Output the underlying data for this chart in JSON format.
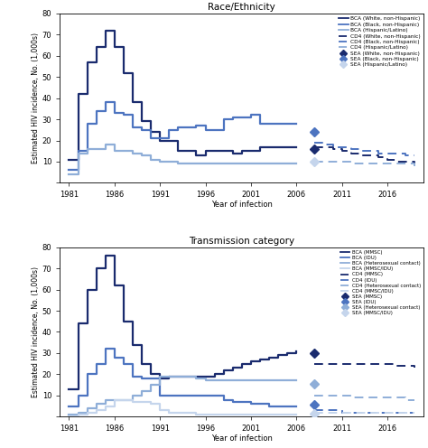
{
  "top_title": "Race/Ethnicity",
  "bottom_title": "Transmission category",
  "ylabel": "Estimated HIV incidence, No. (1,000s)",
  "xlabel": "Year of infection",
  "ylim": [
    0,
    80
  ],
  "yticks": [
    0,
    10,
    20,
    30,
    40,
    50,
    60,
    70,
    80
  ],
  "xticks": [
    1981,
    1986,
    1991,
    1996,
    2001,
    2006,
    2011,
    2016
  ],
  "top_bca_years": [
    1981,
    1982,
    1983,
    1984,
    1985,
    1986,
    1987,
    1988,
    1989,
    1990,
    1991,
    1992,
    1993,
    1994,
    1995,
    1996,
    1997,
    1998,
    1999,
    2000,
    2001,
    2002,
    2003,
    2004,
    2005,
    2006
  ],
  "top_bca_white": [
    11,
    42,
    57,
    64,
    72,
    64,
    52,
    38,
    29,
    24,
    20,
    20,
    15,
    15,
    13,
    15,
    15,
    15,
    14,
    15,
    15,
    17,
    17,
    17,
    17,
    17
  ],
  "top_bca_black": [
    6,
    15,
    28,
    34,
    38,
    33,
    32,
    26,
    25,
    21,
    21,
    25,
    26,
    26,
    27,
    25,
    25,
    30,
    31,
    31,
    32,
    28,
    28,
    28,
    28,
    28
  ],
  "top_bca_hisp": [
    4,
    14,
    16,
    16,
    18,
    15,
    15,
    14,
    13,
    11,
    10,
    10,
    9,
    9,
    9,
    9,
    9,
    9,
    9,
    9,
    9,
    9,
    9,
    9,
    9,
    9
  ],
  "top_cd4_years": [
    2008,
    2009,
    2010,
    2011,
    2012,
    2013,
    2014,
    2015,
    2016,
    2017,
    2018,
    2019
  ],
  "top_cd4_white": [
    17,
    17,
    16,
    15,
    14,
    13,
    13,
    12,
    11,
    10,
    10,
    9
  ],
  "top_cd4_black": [
    19,
    18,
    17,
    17,
    16,
    15,
    15,
    14,
    14,
    14,
    13,
    13
  ],
  "top_cd4_hisp": [
    10,
    10,
    10,
    10,
    9,
    9,
    9,
    9,
    9,
    9,
    9,
    8
  ],
  "top_sea_year": [
    2008
  ],
  "top_sea_white": [
    16
  ],
  "top_sea_black": [
    24
  ],
  "top_sea_hisp": [
    10
  ],
  "bot_bca_years": [
    1981,
    1982,
    1983,
    1984,
    1985,
    1986,
    1987,
    1988,
    1989,
    1990,
    1991,
    1992,
    1993,
    1994,
    1995,
    1996,
    1997,
    1998,
    1999,
    2000,
    2001,
    2002,
    2003,
    2004,
    2005,
    2006
  ],
  "bot_bca_mmsc": [
    13,
    44,
    60,
    70,
    76,
    62,
    45,
    34,
    25,
    20,
    18,
    19,
    19,
    19,
    19,
    19,
    20,
    22,
    23,
    25,
    26,
    27,
    28,
    29,
    30,
    31
  ],
  "bot_bca_idu": [
    5,
    10,
    20,
    25,
    32,
    28,
    25,
    19,
    18,
    18,
    10,
    10,
    10,
    10,
    10,
    10,
    10,
    8,
    7,
    7,
    6,
    6,
    5,
    5,
    5,
    5
  ],
  "bot_bca_het": [
    1,
    2,
    4,
    6,
    8,
    8,
    8,
    10,
    12,
    15,
    19,
    19,
    19,
    19,
    18,
    17,
    17,
    17,
    17,
    17,
    17,
    17,
    17,
    17,
    17,
    17
  ],
  "bot_bca_mmscidu": [
    0,
    1,
    2,
    3,
    5,
    8,
    8,
    7,
    7,
    6,
    3,
    2,
    2,
    2,
    1,
    1,
    1,
    1,
    1,
    1,
    1,
    1,
    1,
    1,
    1,
    1
  ],
  "bot_cd4_years": [
    2008,
    2009,
    2010,
    2011,
    2012,
    2013,
    2014,
    2015,
    2016,
    2017,
    2018,
    2019
  ],
  "bot_cd4_mmsc": [
    25,
    25,
    25,
    25,
    25,
    25,
    25,
    25,
    25,
    24,
    24,
    23
  ],
  "bot_cd4_idu": [
    3,
    3,
    3,
    2,
    2,
    2,
    2,
    2,
    2,
    2,
    2,
    2
  ],
  "bot_cd4_het": [
    10,
    10,
    10,
    10,
    9,
    9,
    9,
    9,
    9,
    9,
    8,
    8
  ],
  "bot_cd4_mmscidu": [
    2,
    2,
    2,
    2,
    2,
    2,
    2,
    2,
    2,
    2,
    2,
    2
  ],
  "bot_sea_year": [
    2008
  ],
  "bot_sea_mmsc": [
    30
  ],
  "bot_sea_idu": [
    5.5
  ],
  "bot_sea_het": [
    15.5
  ],
  "bot_sea_mmscidu": [
    1.5
  ],
  "color_dark": "#1a2b6e",
  "color_mid": "#4d74c0",
  "color_light": "#8faed8",
  "color_vlight": "#c5d5ec",
  "top_legend_labels": [
    "BCA (White, non-Hispanic)",
    "BCA (Black, non-Hispanic)",
    "BCA (Hispanic/Latino)",
    "CD4 (White, non-Hispanic)",
    "CD4 (Black, non-Hispanic)",
    "CD4 (Hispanic/Latino)",
    "SEA (White, non-Hispanic)",
    "SEA (Black, non-Hispanic)",
    "SEA (Hispanic/Latino)"
  ],
  "bot_legend_labels": [
    "BCA (MMSC)",
    "BCA (IDU)",
    "BCA (Heterosexual contact)",
    "BCA (MMSC/IDU)",
    "CD4 (MMSC)",
    "CD4 (IDU)",
    "CD4 (Heterosexual contact)",
    "CD4 (MMSC/IDU)",
    "SEA (MMSC)",
    "SEA (IDU)",
    "SEA (Heterosexual contact)",
    "SEA (MMSC/IDU)"
  ]
}
